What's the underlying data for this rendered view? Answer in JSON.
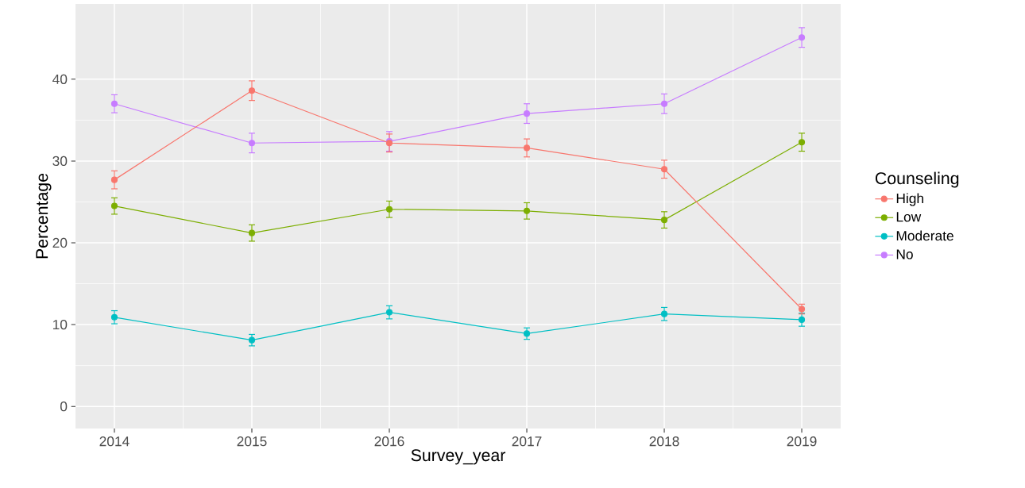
{
  "chart_data": {
    "type": "line",
    "xlabel": "Survey_year",
    "ylabel": "Percentage",
    "legend_title": "Counseling",
    "categories": [
      "2014",
      "2015",
      "2016",
      "2017",
      "2018",
      "2019"
    ],
    "series": [
      {
        "name": "High",
        "color": "#f8766d",
        "values": [
          27.7,
          38.6,
          32.2,
          31.6,
          29.0,
          11.9
        ],
        "errors": [
          1.1,
          1.2,
          1.1,
          1.1,
          1.1,
          0.6
        ]
      },
      {
        "name": "Low",
        "color": "#7cae00",
        "values": [
          24.5,
          21.2,
          24.1,
          23.9,
          22.8,
          32.3
        ],
        "errors": [
          1.0,
          1.0,
          1.0,
          1.0,
          1.0,
          1.1
        ]
      },
      {
        "name": "Moderate",
        "color": "#00bfc4",
        "values": [
          10.9,
          8.1,
          11.5,
          8.9,
          11.3,
          10.6
        ],
        "errors": [
          0.8,
          0.7,
          0.8,
          0.7,
          0.8,
          0.8
        ]
      },
      {
        "name": "No",
        "color": "#c77cff",
        "values": [
          37.0,
          32.2,
          32.4,
          35.8,
          37.0,
          45.1
        ],
        "errors": [
          1.1,
          1.2,
          1.2,
          1.2,
          1.2,
          1.2
        ]
      }
    ],
    "ylim": [
      -2.7,
      49.2
    ],
    "yticks": [
      0,
      10,
      20,
      30,
      40
    ],
    "grid": true,
    "legend": "right",
    "marker": "circle",
    "line_style": "solid"
  }
}
